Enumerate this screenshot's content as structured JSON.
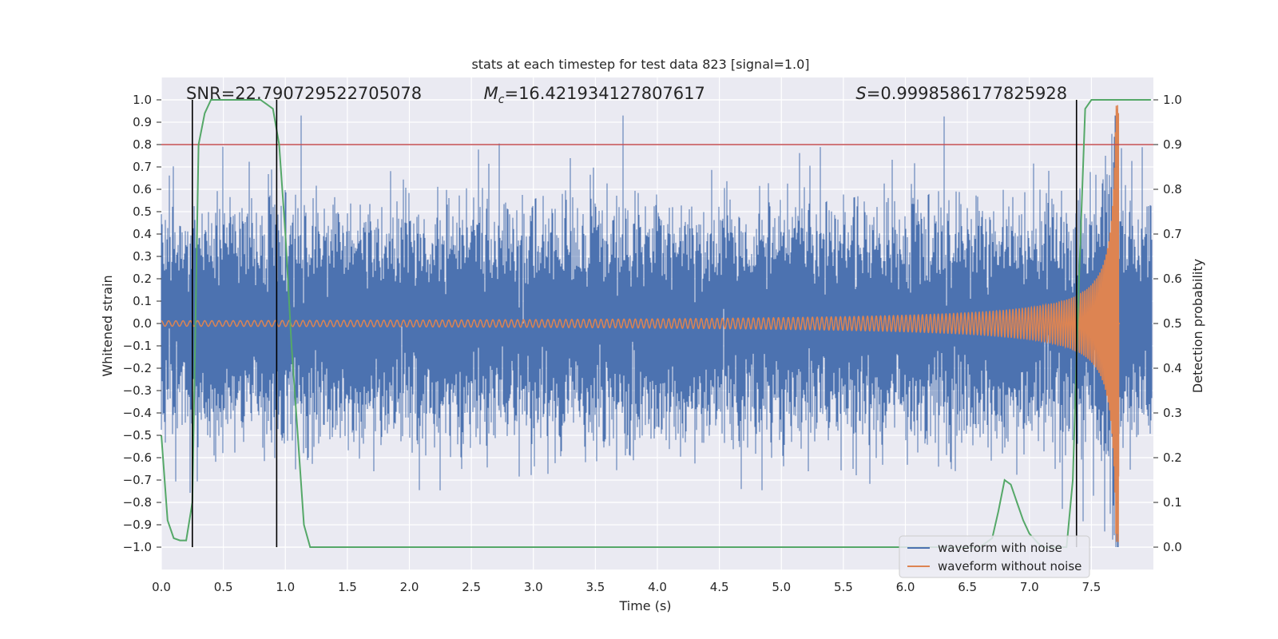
{
  "chart_data": {
    "type": "line",
    "title": "stats at each timestep for test data 823 [signal=1.0]",
    "xlabel": "Time (s)",
    "ylabel": "Whitened strain",
    "ylabel_right": "Detection probability",
    "xlim": [
      0.0,
      8.0
    ],
    "ylim": [
      -1.1,
      1.1
    ],
    "ylim_right": [
      -0.05,
      1.05
    ],
    "xticks": [
      "0.0",
      "0.5",
      "1.0",
      "1.5",
      "2.0",
      "2.5",
      "3.0",
      "3.5",
      "4.0",
      "4.5",
      "5.0",
      "5.5",
      "6.0",
      "6.5",
      "7.0",
      "7.5"
    ],
    "xtick_values": [
      0.0,
      0.5,
      1.0,
      1.5,
      2.0,
      2.5,
      3.0,
      3.5,
      4.0,
      4.5,
      5.0,
      5.5,
      6.0,
      6.5,
      7.0,
      7.5
    ],
    "yticks": [
      "1.0",
      "0.9",
      "0.8",
      "0.7",
      "0.6",
      "0.5",
      "0.4",
      "0.3",
      "0.2",
      "0.1",
      "0.0",
      "−0.1",
      "−0.2",
      "−0.3",
      "−0.4",
      "−0.5",
      "−0.6",
      "−0.7",
      "−0.8",
      "−0.9",
      "−1.0"
    ],
    "ytick_values": [
      1.0,
      0.9,
      0.8,
      0.7,
      0.6,
      0.5,
      0.4,
      0.3,
      0.2,
      0.1,
      0.0,
      -0.1,
      -0.2,
      -0.3,
      -0.4,
      -0.5,
      -0.6,
      -0.7,
      -0.8,
      -0.9,
      -1.0
    ],
    "yticks_right": [
      "1.0",
      "0.9",
      "0.8",
      "0.7",
      "0.6",
      "0.5",
      "0.4",
      "0.3",
      "0.2",
      "0.1",
      "0.0"
    ],
    "ytick_right_values": [
      1.0,
      0.9,
      0.8,
      0.7,
      0.6,
      0.5,
      0.4,
      0.3,
      0.2,
      0.1,
      0.0
    ],
    "annotations": [
      {
        "prefix": "SNR",
        "value": "=22.790729522705078",
        "x": 0.2,
        "italic": false,
        "sub": ""
      },
      {
        "prefix": "M",
        "value": "=16.421934127807617",
        "x": 2.6,
        "italic": true,
        "sub": "c"
      },
      {
        "prefix": "S",
        "value": "=0.9998586177825928",
        "x": 5.6,
        "italic": true,
        "sub": ""
      }
    ],
    "threshold": {
      "value": 0.8,
      "color": "#c44e52"
    },
    "vertical_markers": [
      0.25,
      0.93,
      7.38
    ],
    "series": [
      {
        "name": "waveform with noise",
        "color": "#4c72b0",
        "axis": "left",
        "kind": "noise",
        "sigma": 0.22,
        "sample_rate": 2048,
        "approx_max": 0.93,
        "approx_min": -1.0
      },
      {
        "name": "waveform without noise",
        "color": "#dd8452",
        "axis": "left",
        "kind": "chirp",
        "merger_time": 7.72,
        "amplitude_start": 0.012,
        "amplitude_peak": 0.98,
        "cycles_visible": 210
      },
      {
        "name": "",
        "color": "#55a868",
        "axis": "right",
        "kind": "probability",
        "x": [
          0.0,
          0.05,
          0.1,
          0.15,
          0.2,
          0.25,
          0.3,
          0.35,
          0.4,
          0.5,
          0.6,
          0.7,
          0.8,
          0.85,
          0.9,
          0.95,
          1.0,
          1.05,
          1.1,
          1.15,
          1.2,
          1.3,
          2.0,
          3.0,
          4.0,
          5.0,
          6.0,
          6.5,
          6.6,
          6.7,
          6.75,
          6.8,
          6.85,
          6.9,
          6.95,
          7.0,
          7.1,
          7.2,
          7.3,
          7.35,
          7.4,
          7.45,
          7.5,
          7.6,
          7.7,
          7.8,
          7.9,
          7.98
        ],
        "y": [
          0.25,
          0.06,
          0.02,
          0.015,
          0.015,
          0.1,
          0.9,
          0.97,
          1.0,
          1.0,
          1.0,
          1.0,
          1.0,
          0.99,
          0.98,
          0.9,
          0.7,
          0.45,
          0.25,
          0.05,
          0.0,
          0.0,
          0.0,
          0.0,
          0.0,
          0.0,
          0.0,
          0.0,
          0.0,
          0.02,
          0.08,
          0.15,
          0.14,
          0.1,
          0.06,
          0.03,
          0.0,
          0.0,
          0.0,
          0.15,
          0.6,
          0.98,
          1.0,
          1.0,
          1.0,
          1.0,
          1.0,
          1.0
        ]
      }
    ],
    "legend": {
      "placement": "lower-right",
      "entries": [
        "waveform with noise",
        "waveform without noise"
      ]
    },
    "grid": true
  }
}
